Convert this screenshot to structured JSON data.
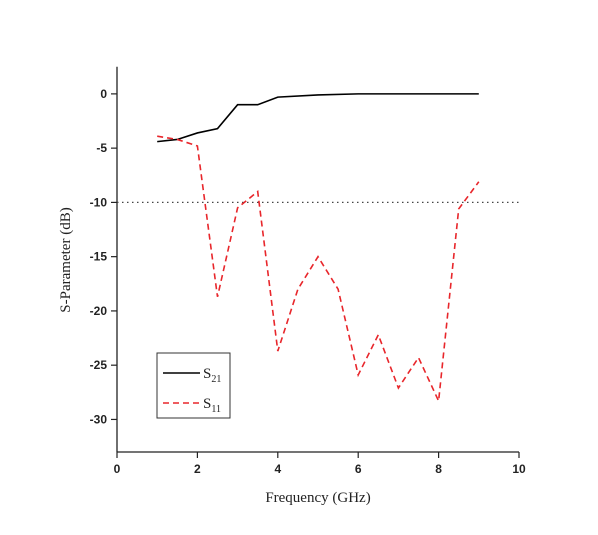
{
  "chart_data": {
    "type": "line",
    "x_label": "Frequency (GHz)",
    "y_label": "S-Parameter (dB)",
    "xlim": [
      0,
      10
    ],
    "ylim": [
      -33,
      2.5
    ],
    "xticks": [
      0,
      2,
      4,
      6,
      8,
      10
    ],
    "yticks": [
      0,
      -5,
      -10,
      -15,
      -20,
      -25,
      -30
    ],
    "reference_line": {
      "y": -10,
      "color": "#444"
    },
    "series": [
      {
        "name": "S21",
        "color": "#000000",
        "dash": false,
        "x": [
          1,
          1.5,
          2,
          2.5,
          3,
          3.5,
          4,
          5,
          6,
          7,
          8,
          9
        ],
        "values": [
          -4.4,
          -4.2,
          -3.6,
          -3.2,
          -1.0,
          -1.0,
          -0.3,
          -0.1,
          0,
          0,
          0,
          0
        ]
      },
      {
        "name": "S11",
        "color": "#e8262b",
        "dash": true,
        "x": [
          1,
          1.5,
          2,
          2.5,
          3,
          3.5,
          4,
          4.5,
          5,
          5.5,
          6,
          6.5,
          7,
          7.5,
          8,
          8.5,
          9
        ],
        "values": [
          -3.9,
          -4.2,
          -4.8,
          -18.7,
          -10.5,
          -9,
          -23.7,
          -18,
          -15,
          -18,
          -25.9,
          -22.2,
          -27.1,
          -24.3,
          -28.3,
          -10.6,
          -8.1
        ]
      }
    ]
  }
}
